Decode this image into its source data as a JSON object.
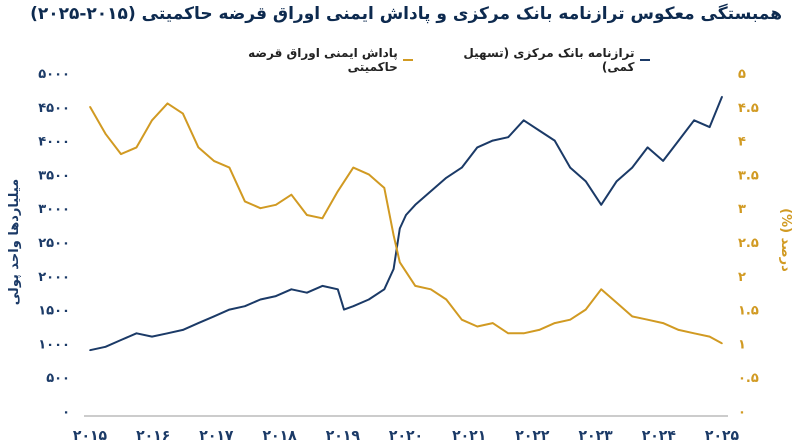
{
  "title": "همبستگی معکوس ترازنامه بانک مرکزی و پاداش ایمنی اوراق قرضه حاکمیتی (۲۰۱۵-۲۰۲۵)",
  "legend": {
    "series1": "ترازنامه بانک مرکزی (تسهیل کمی)",
    "series2": "پاداش ایمنی اوراق قرضه حاکمیتی"
  },
  "colors": {
    "series1": "#1b3a67",
    "series2": "#d19a22",
    "left_axis": "#1b3a67",
    "right_axis": "#d19a22"
  },
  "chart_data": {
    "type": "line",
    "x_tick_labels": [
      "۲۰۱۵",
      "۲۰۱۶",
      "۲۰۱۷",
      "۲۰۱۸",
      "۲۰۱۹",
      "۲۰۲۰",
      "۲۰۲۱",
      "۲۰۲۲",
      "۲۰۲۳",
      "۲۰۲۴",
      "۲۰۲۵"
    ],
    "xlim": [
      2015,
      2025.2
    ],
    "left_axis": {
      "label": "میلیاردها واحد پولی",
      "ylim": [
        0,
        5000
      ],
      "ticks": [
        0,
        500,
        1000,
        1500,
        2000,
        2500,
        3000,
        3500,
        4000,
        4500,
        5000
      ],
      "tick_labels": [
        "۰",
        "۵۰۰",
        "۱۰۰۰",
        "۱۵۰۰",
        "۲۰۰۰",
        "۲۵۰۰",
        "۳۰۰۰",
        "۳۵۰۰",
        "۴۰۰۰",
        "۴۵۰۰",
        "۵۰۰۰"
      ]
    },
    "right_axis": {
      "label": "درصد (%)",
      "ylim": [
        0,
        5
      ],
      "ticks": [
        0,
        0.5,
        1,
        1.5,
        2,
        2.5,
        3,
        3.5,
        4,
        4.5,
        5
      ],
      "tick_labels": [
        "۰",
        "۰.۵",
        "۱",
        "۱.۵",
        "۲",
        "۲.۵",
        "۳",
        "۳.۵",
        "۴",
        "۴.۵",
        "۵"
      ]
    },
    "series": [
      {
        "name": "ترازنامه بانک مرکزی (تسهیل کمی)",
        "axis": "left",
        "x": [
          2015.0,
          2015.25,
          2015.5,
          2015.75,
          2016.0,
          2016.25,
          2016.5,
          2016.75,
          2017.0,
          2017.25,
          2017.5,
          2017.75,
          2018.0,
          2018.25,
          2018.5,
          2018.75,
          2019.0,
          2019.1,
          2019.25,
          2019.5,
          2019.75,
          2019.9,
          2020.0,
          2020.1,
          2020.25,
          2020.5,
          2020.75,
          2021.0,
          2021.25,
          2021.5,
          2021.75,
          2022.0,
          2022.25,
          2022.5,
          2022.75,
          2023.0,
          2023.25,
          2023.5,
          2023.75,
          2024.0,
          2024.25,
          2024.5,
          2024.75,
          2025.0,
          2025.2
        ],
        "values": [
          900,
          950,
          1050,
          1150,
          1100,
          1150,
          1200,
          1300,
          1400,
          1500,
          1550,
          1650,
          1700,
          1800,
          1750,
          1850,
          1800,
          1500,
          1550,
          1650,
          1800,
          2100,
          2700,
          2900,
          3050,
          3250,
          3450,
          3600,
          3900,
          4000,
          4050,
          4300,
          4150,
          4000,
          3600,
          3400,
          3050,
          3400,
          3600,
          3900,
          3700,
          4000,
          4300,
          4200,
          4650
        ]
      },
      {
        "name": "پاداش ایمنی اوراق قرضه حاکمیتی",
        "axis": "right",
        "x": [
          2015.0,
          2015.25,
          2015.5,
          2015.75,
          2016.0,
          2016.25,
          2016.5,
          2016.75,
          2017.0,
          2017.25,
          2017.5,
          2017.75,
          2018.0,
          2018.25,
          2018.5,
          2018.75,
          2019.0,
          2019.25,
          2019.5,
          2019.75,
          2019.9,
          2020.0,
          2020.25,
          2020.5,
          2020.75,
          2021.0,
          2021.25,
          2021.5,
          2021.75,
          2022.0,
          2022.25,
          2022.5,
          2022.75,
          2023.0,
          2023.25,
          2023.5,
          2023.75,
          2024.0,
          2024.25,
          2024.5,
          2024.75,
          2025.0,
          2025.2
        ],
        "values": [
          4.5,
          4.1,
          3.8,
          3.9,
          4.3,
          4.55,
          4.4,
          3.9,
          3.7,
          3.6,
          3.1,
          3.0,
          3.05,
          3.2,
          2.9,
          2.85,
          3.25,
          3.6,
          3.5,
          3.3,
          2.6,
          2.2,
          1.85,
          1.8,
          1.65,
          1.35,
          1.25,
          1.3,
          1.15,
          1.15,
          1.2,
          1.3,
          1.35,
          1.5,
          1.8,
          1.6,
          1.4,
          1.35,
          1.3,
          1.2,
          1.15,
          1.1,
          1.0
        ]
      }
    ],
    "grid": false,
    "legend_position": "top"
  }
}
